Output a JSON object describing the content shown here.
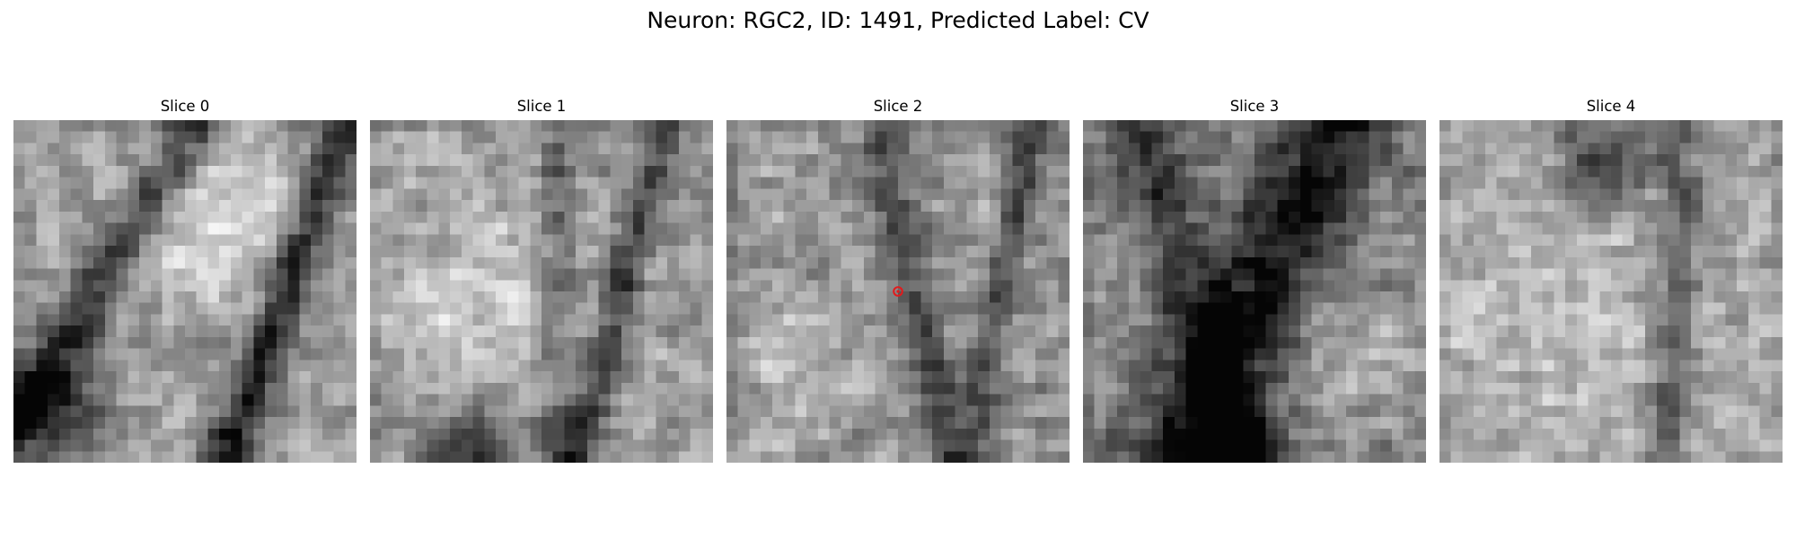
{
  "figure": {
    "title": "Neuron: RGC2, ID: 1491, Predicted Label: CV"
  },
  "panels": [
    {
      "title": "Slice 0",
      "has_marker": false
    },
    {
      "title": "Slice 1",
      "has_marker": false
    },
    {
      "title": "Slice 2",
      "has_marker": true
    },
    {
      "title": "Slice 3",
      "has_marker": false
    },
    {
      "title": "Slice 4",
      "has_marker": false
    }
  ],
  "colors": {
    "marker": "#e31a1c",
    "colormap": "gray"
  }
}
